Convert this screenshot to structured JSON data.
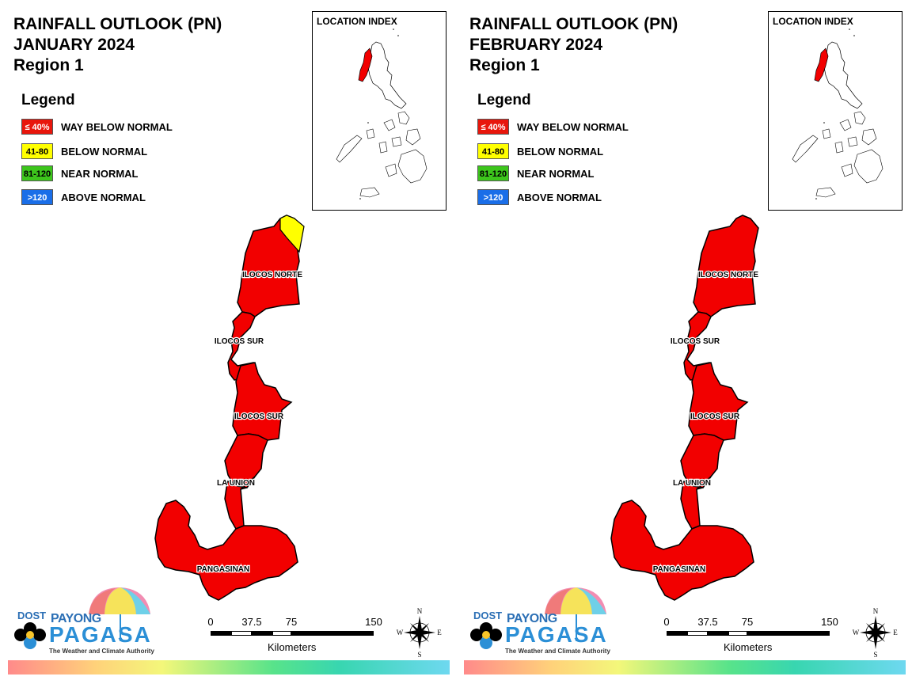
{
  "panels": [
    {
      "title_line1": "RAINFALL OUTLOOK (PN)",
      "title_line2": "JANUARY 2024",
      "title_line3": "Region 1",
      "legend_title": "Legend",
      "legend": [
        {
          "range": "≤ 40%",
          "label": "WAY BELOW NORMAL",
          "color": "#e8160c",
          "text_color": "#ffffff"
        },
        {
          "range": "41-80",
          "label": "BELOW NORMAL",
          "color": "#ffff00",
          "text_color": "#000000"
        },
        {
          "range": "81-120",
          "label": "NEAR NORMAL",
          "color": "#3dc61c",
          "text_color": "#000000"
        },
        {
          "range": ">120",
          "label": "ABOVE NORMAL",
          "color": "#1a6ee8",
          "text_color": "#ffffff"
        }
      ],
      "inset_title": "LOCATION INDEX",
      "provinces": [
        "ILOCOS NORTE",
        "ILOCOS SUR",
        "ILOCOS SUR",
        "LA UNION",
        "PANGASINAN"
      ],
      "below_normal_area": "northeast tip of Ilocos Norte",
      "scale_ticks": [
        "0",
        "37.5",
        "75",
        "150"
      ],
      "scale_unit": "Kilometers",
      "compass": {
        "n": "N",
        "s": "S",
        "e": "E",
        "w": "W"
      },
      "logo": {
        "dost": "DOST",
        "payong": "PAYONG",
        "pagasa": "PAGASA",
        "tagline": "The Weather and Climate Authority"
      }
    },
    {
      "title_line1": "RAINFALL OUTLOOK (PN)",
      "title_line2": "FEBRUARY 2024",
      "title_line3": "Region 1",
      "legend_title": "Legend",
      "legend": [
        {
          "range": "≤ 40%",
          "label": "WAY BELOW NORMAL",
          "color": "#e8160c",
          "text_color": "#ffffff"
        },
        {
          "range": "41-80",
          "label": "BELOW NORMAL",
          "color": "#ffff00",
          "text_color": "#000000"
        },
        {
          "range": "81-120",
          "label": "NEAR NORMAL",
          "color": "#3dc61c",
          "text_color": "#000000"
        },
        {
          "range": ">120",
          "label": "ABOVE NORMAL",
          "color": "#1a6ee8",
          "text_color": "#ffffff"
        }
      ],
      "inset_title": "LOCATION INDEX",
      "provinces": [
        "ILOCOS NORTE",
        "ILOCOS SUR",
        "ILOCOS SUR",
        "LA UNION",
        "PANGASINAN"
      ],
      "below_normal_area": "",
      "scale_ticks": [
        "0",
        "37.5",
        "75",
        "150"
      ],
      "scale_unit": "Kilometers",
      "compass": {
        "n": "N",
        "s": "S",
        "e": "E",
        "w": "W"
      },
      "logo": {
        "dost": "DOST",
        "payong": "PAYONG",
        "pagasa": "PAGASA",
        "tagline": "The Weather and Climate Authority"
      }
    }
  ],
  "colors": {
    "map_fill": "#f20000",
    "below_normal": "#ffff00",
    "outline": "#000000"
  }
}
